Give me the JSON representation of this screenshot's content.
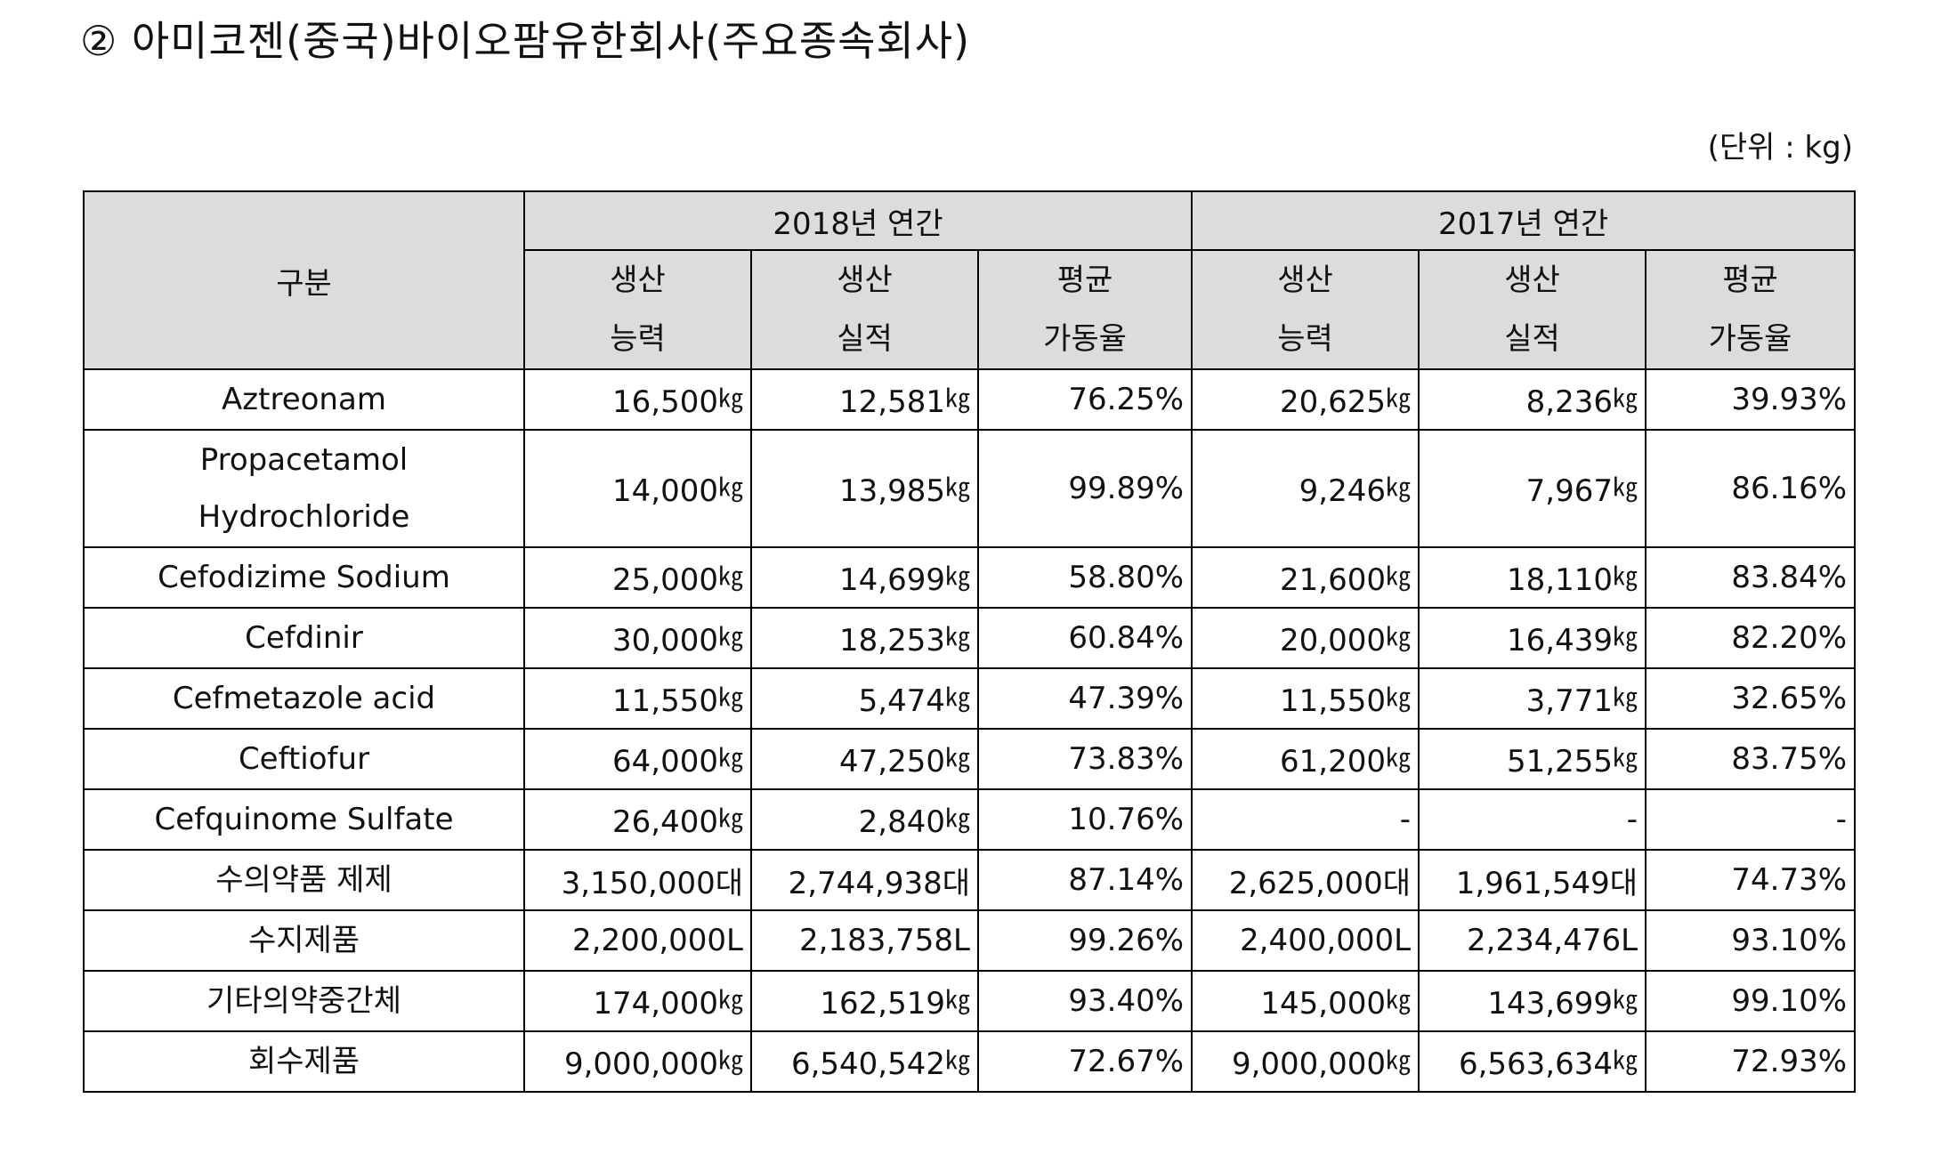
{
  "title": "② 아미코젠(중국)바이오팜유한회사(주요종속회사)",
  "unit_note": "(단위 : kg)",
  "table": {
    "col_item": "구분",
    "group_2018": "2018년 연간",
    "group_2017": "2017년 연간",
    "sub": [
      {
        "line1": "생산",
        "line2": "능력"
      },
      {
        "line1": "생산",
        "line2": "실적"
      },
      {
        "line1": "평균",
        "line2": "가동율"
      },
      {
        "line1": "생산",
        "line2": "능력"
      },
      {
        "line1": "생산",
        "line2": "실적"
      },
      {
        "line1": "평균",
        "line2": "가동율"
      }
    ],
    "rows": [
      {
        "name": "Aztreonam",
        "name2": "",
        "v": [
          "16,500",
          "12,581",
          "76.25%",
          "20,625",
          "8,236",
          "39.93%"
        ],
        "u": [
          "㎏",
          "㎏",
          "",
          "㎏",
          "㎏",
          ""
        ]
      },
      {
        "name": "Propacetamol",
        "name2": "Hydrochloride",
        "v": [
          "14,000",
          "13,985",
          "99.89%",
          "9,246",
          "7,967",
          "86.16%"
        ],
        "u": [
          "㎏",
          "㎏",
          "",
          "㎏",
          "㎏",
          ""
        ]
      },
      {
        "name": "Cefodizime Sodium",
        "name2": "",
        "v": [
          "25,000",
          "14,699",
          "58.80%",
          "21,600",
          "18,110",
          "83.84%"
        ],
        "u": [
          "㎏",
          "㎏",
          "",
          "㎏",
          "㎏",
          ""
        ]
      },
      {
        "name": "Cefdinir",
        "name2": "",
        "v": [
          "30,000",
          "18,253",
          "60.84%",
          "20,000",
          "16,439",
          "82.20%"
        ],
        "u": [
          "㎏",
          "㎏",
          "",
          "㎏",
          "㎏",
          ""
        ]
      },
      {
        "name": "Cefmetazole acid",
        "name2": "",
        "v": [
          "11,550",
          "5,474",
          "47.39%",
          "11,550",
          "3,771",
          "32.65%"
        ],
        "u": [
          "㎏",
          "㎏",
          "",
          "㎏",
          "㎏",
          ""
        ]
      },
      {
        "name": "Ceftiofur",
        "name2": "",
        "v": [
          "64,000",
          "47,250",
          "73.83%",
          "61,200",
          "51,255",
          "83.75%"
        ],
        "u": [
          "㎏",
          "㎏",
          "",
          "㎏",
          "㎏",
          ""
        ]
      },
      {
        "name": "Cefquinome Sulfate",
        "name2": "",
        "v": [
          "26,400",
          "2,840",
          "10.76%",
          "-",
          "-",
          "-"
        ],
        "u": [
          "㎏",
          "㎏",
          "",
          "",
          "",
          ""
        ]
      },
      {
        "name": "수의약품 제제",
        "name2": "",
        "v": [
          "3,150,000대",
          "2,744,938대",
          "87.14%",
          "2,625,000대",
          "1,961,549대",
          "74.73%"
        ],
        "u": [
          "",
          "",
          "",
          "",
          "",
          ""
        ]
      },
      {
        "name": "수지제품",
        "name2": "",
        "v": [
          "2,200,000L",
          "2,183,758L",
          "99.26%",
          "2,400,000L",
          "2,234,476L",
          "93.10%"
        ],
        "u": [
          "",
          "",
          "",
          "",
          "",
          ""
        ]
      },
      {
        "name": "기타의약중간체",
        "name2": "",
        "v": [
          "174,000",
          "162,519",
          "93.40%",
          "145,000",
          "143,699",
          "99.10%"
        ],
        "u": [
          "㎏",
          "㎏",
          "",
          "㎏",
          "㎏",
          ""
        ]
      },
      {
        "name": "회수제품",
        "name2": "",
        "v": [
          "9,000,000",
          "6,540,542",
          "72.67%",
          "9,000,000",
          "6,563,634",
          "72.93%"
        ],
        "u": [
          "㎏",
          "㎏",
          "",
          "㎏",
          "㎏",
          ""
        ]
      }
    ]
  }
}
